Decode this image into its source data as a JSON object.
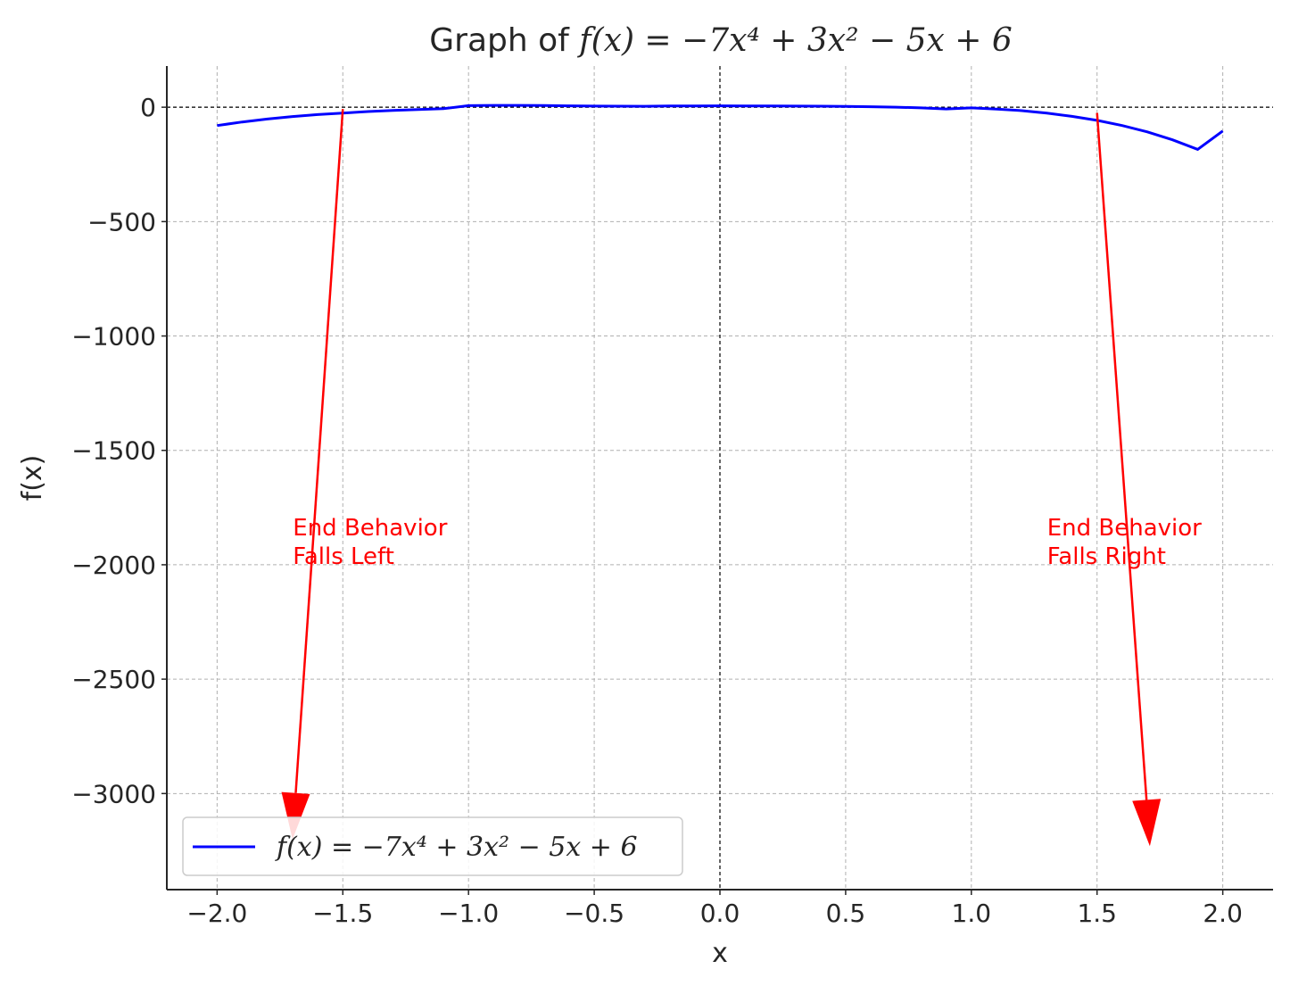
{
  "chart_data": {
    "type": "line",
    "title": "Graph of f(x) = −7x⁴ + 3x² − 5x + 6",
    "title_parts": {
      "prefix": "Graph of ",
      "math": "f(x) = −7x⁴ + 3x² − 5x + 6"
    },
    "xlabel": "x",
    "ylabel": "f(x)",
    "xlim": [
      -2.2,
      2.2
    ],
    "ylim": [
      -3420,
      180
    ],
    "x_ticks": [
      -2.0,
      -1.5,
      -1.0,
      -0.5,
      0.0,
      0.5,
      1.0,
      1.5,
      2.0
    ],
    "x_tick_labels": [
      "−2.0",
      "−1.5",
      "−1.0",
      "−0.5",
      "0.0",
      "0.5",
      "1.0",
      "1.5",
      "2.0"
    ],
    "y_ticks": [
      0,
      -500,
      -1000,
      -1500,
      -2000,
      -2500,
      -3000
    ],
    "y_tick_labels": [
      "0",
      "−500",
      "−1000",
      "−1500",
      "−2000",
      "−2500",
      "−3000"
    ],
    "grid": true,
    "reference_lines": {
      "y_at_zero": true,
      "x_at_zero": true
    },
    "series": [
      {
        "name": "f(x) = −7x⁴ + 3x² − 5x + 6",
        "color": "#0000ff",
        "x": [
          -2.0,
          -1.9,
          -1.8,
          -1.7,
          -1.6,
          -1.5,
          -1.4,
          -1.3,
          -1.2,
          -1.1,
          -1.0,
          -0.9,
          -0.8,
          -0.7,
          -0.6,
          -0.5,
          -0.4,
          -0.3,
          -0.2,
          -0.1,
          0.0,
          0.1,
          0.2,
          0.3,
          0.4,
          0.5,
          0.6,
          0.7,
          0.8,
          0.9,
          1.0,
          1.1,
          1.2,
          1.3,
          1.4,
          1.5,
          1.6,
          1.7,
          1.8,
          1.9,
          2.0
        ],
        "y": [
          -80,
          -64.4,
          -51.5,
          -40.8,
          -32.2,
          -25.4,
          -19.0,
          -13.9,
          -9.8,
          -6.3,
          7,
          8.1,
          8.1,
          7.4,
          6.2,
          5.0,
          4.3,
          4.2,
          5.1,
          5.3,
          6,
          5.5,
          5.1,
          4.7,
          4.3,
          3.8,
          2.2,
          0.3,
          -2.9,
          -7.7,
          -3,
          -7.9,
          -15.2,
          -25.9,
          -40.0,
          -57.7,
          -80.1,
          -108.0,
          -142.4,
          -184.1,
          -104
        ]
      }
    ],
    "annotations": [
      {
        "text_lines": [
          "End Behavior",
          "Falls Left"
        ],
        "color": "#ff0000",
        "arrow_from": [
          -1.5,
          -8
        ],
        "arrow_to": [
          -1.7,
          -3200
        ]
      },
      {
        "text_lines": [
          "End Behavior",
          "Falls Right"
        ],
        "color": "#ff0000",
        "arrow_from": [
          1.5,
          -25
        ],
        "arrow_to": [
          1.71,
          -3230
        ]
      }
    ],
    "legend": {
      "placement": "lower-left",
      "entries": [
        "f(x) = −7x⁴ + 3x² − 5x + 6"
      ]
    }
  }
}
